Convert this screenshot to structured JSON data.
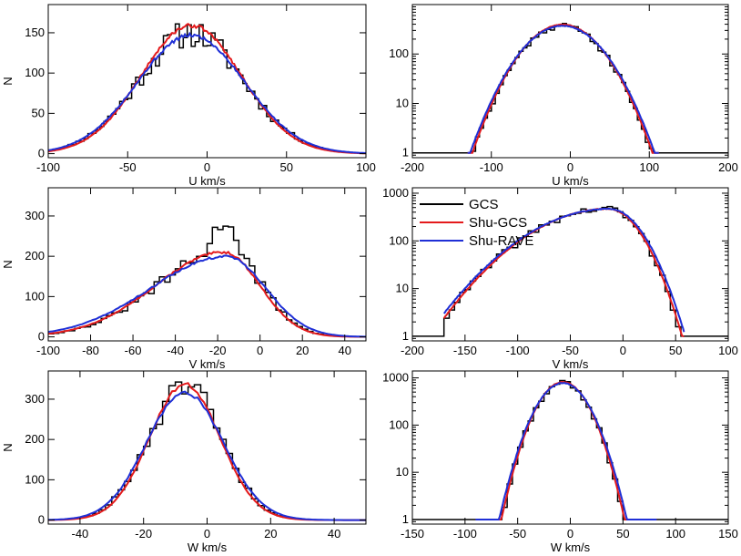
{
  "figure": {
    "legend": {
      "placement": "top-left of middle-right panel",
      "entries": [
        {
          "name": "GCS",
          "color": "#000000"
        },
        {
          "name": "Shu-GCS",
          "color": "#e41a1c"
        },
        {
          "name": "Shu-RAVE",
          "color": "#1f2fd6"
        }
      ]
    }
  },
  "chart_data": [
    {
      "id": "U-lin",
      "type": "line",
      "xlabel": "U km/s",
      "ylabel": "N",
      "xscale": "linear",
      "yscale": "linear",
      "xlim": [
        -100,
        100
      ],
      "ylim": [
        -5,
        185
      ],
      "xticks": [
        -100,
        -50,
        0,
        50,
        100
      ],
      "yticks": [
        0,
        50,
        100,
        150
      ],
      "dist": {
        "mu": -10,
        "sigma": 33,
        "amp": 150,
        "lo": -130,
        "hi": 110
      },
      "series": [
        {
          "name": "GCS",
          "color": "#000000",
          "style": "step",
          "noise": 0.12,
          "seed": 11,
          "dx": 2.5
        },
        {
          "name": "Shu-GCS",
          "color": "#e41a1c",
          "style": "line",
          "ampScale": 1.06,
          "muShift": 0,
          "sigmaScale": 0.96,
          "seed": 3
        },
        {
          "name": "Shu-RAVE",
          "color": "#1f2fd6",
          "style": "line",
          "ampScale": 0.98,
          "muShift": 0,
          "sigmaScale": 1.02,
          "seed": 5
        }
      ]
    },
    {
      "id": "U-log",
      "type": "line",
      "xlabel": "U km/s",
      "ylabel": "",
      "xscale": "linear",
      "yscale": "log",
      "xlim": [
        -200,
        200
      ],
      "ylim": [
        0.8,
        1000
      ],
      "xticks": [
        -200,
        -100,
        0,
        100,
        200
      ],
      "yticks": [
        1,
        10,
        100
      ],
      "dist": {
        "mu": -10,
        "sigma": 33,
        "amp": 380,
        "lo": -130,
        "hi": 112
      },
      "series": [
        {
          "name": "GCS",
          "color": "#000000",
          "style": "step",
          "noise": 0.14,
          "seed": 21,
          "dx": 5
        },
        {
          "name": "Shu-GCS",
          "color": "#e41a1c",
          "style": "line",
          "ampScale": 1.03,
          "muShift": 0,
          "sigmaScale": 1.0,
          "seed": 7
        },
        {
          "name": "Shu-RAVE",
          "color": "#1f2fd6",
          "style": "line",
          "ampScale": 0.98,
          "muShift": 0,
          "sigmaScale": 1.03,
          "seed": 9
        }
      ]
    },
    {
      "id": "V-lin",
      "type": "line",
      "xlabel": "V km/s",
      "ylabel": "N",
      "xscale": "linear",
      "yscale": "linear",
      "xlim": [
        -100,
        50
      ],
      "ylim": [
        -10,
        370
      ],
      "xticks": [
        -100,
        -80,
        -60,
        -40,
        -20,
        0,
        20,
        40
      ],
      "yticks": [
        0,
        100,
        200,
        300
      ],
      "dist": {
        "mu": -16,
        "sigma": 17,
        "amp": 210,
        "skew": 1.9,
        "lo": -100,
        "hi": 50
      },
      "series": [
        {
          "name": "GCS",
          "color": "#000000",
          "style": "step",
          "noise": 0.1,
          "seed": 31,
          "dx": 2.5,
          "peakBoost": 1.4
        },
        {
          "name": "Shu-GCS",
          "color": "#e41a1c",
          "style": "line",
          "ampScale": 1.0,
          "muShift": -1,
          "sigmaScale": 1.0,
          "seed": 13
        },
        {
          "name": "Shu-RAVE",
          "color": "#1f2fd6",
          "style": "line",
          "ampScale": 0.95,
          "muShift": 0,
          "sigmaScale": 1.1,
          "seed": 15
        }
      ]
    },
    {
      "id": "V-log",
      "type": "line",
      "xlabel": "V km/s",
      "ylabel": "",
      "xscale": "linear",
      "yscale": "log",
      "xlim": [
        -200,
        100
      ],
      "ylim": [
        0.8,
        1300
      ],
      "xticks": [
        -200,
        -150,
        -100,
        -50,
        0,
        50,
        100
      ],
      "yticks": [
        1,
        10,
        100,
        1000
      ],
      "dist": {
        "mu": -14,
        "sigma": 20,
        "amp": 470,
        "skew": 2.4,
        "lo": -170,
        "hi": 58
      },
      "series": [
        {
          "name": "GCS",
          "color": "#000000",
          "style": "step",
          "noise": 0.16,
          "seed": 41,
          "dx": 5
        },
        {
          "name": "Shu-GCS",
          "color": "#e41a1c",
          "style": "line",
          "ampScale": 1.0,
          "muShift": 0,
          "sigmaScale": 1.0,
          "seed": 17
        },
        {
          "name": "Shu-RAVE",
          "color": "#1f2fd6",
          "style": "line",
          "ampScale": 1.0,
          "muShift": 1,
          "sigmaScale": 1.03,
          "seed": 19
        }
      ]
    },
    {
      "id": "W-lin",
      "type": "line",
      "xlabel": "W km/s",
      "ylabel": "N",
      "xscale": "linear",
      "yscale": "linear",
      "xlim": [
        -50,
        50
      ],
      "ylim": [
        -10,
        370
      ],
      "xticks": [
        -40,
        -20,
        0,
        20,
        40
      ],
      "yticks": [
        0,
        100,
        200,
        300
      ],
      "dist": {
        "mu": -7,
        "sigma": 11.5,
        "amp": 330,
        "lo": -50,
        "hi": 50
      },
      "series": [
        {
          "name": "GCS",
          "color": "#000000",
          "style": "step",
          "noise": 0.1,
          "seed": 51,
          "dx": 2
        },
        {
          "name": "Shu-GCS",
          "color": "#e41a1c",
          "style": "line",
          "ampScale": 1.02,
          "muShift": 0,
          "sigmaScale": 0.97,
          "seed": 23
        },
        {
          "name": "Shu-RAVE",
          "color": "#1f2fd6",
          "style": "line",
          "ampScale": 0.96,
          "muShift": 0,
          "sigmaScale": 1.05,
          "seed": 25
        }
      ]
    },
    {
      "id": "W-log",
      "type": "line",
      "xlabel": "W km/s",
      "ylabel": "",
      "xscale": "linear",
      "yscale": "log",
      "xlim": [
        -150,
        150
      ],
      "ylim": [
        0.8,
        1400
      ],
      "xticks": [
        -150,
        -100,
        -50,
        0,
        50,
        100,
        150
      ],
      "yticks": [
        1,
        10,
        100,
        1000
      ],
      "dist": {
        "mu": -7,
        "sigma": 16,
        "amp": 800,
        "lo": -90,
        "hi": 82
      },
      "series": [
        {
          "name": "GCS",
          "color": "#000000",
          "style": "step",
          "noise": 0.14,
          "seed": 61,
          "dx": 5
        },
        {
          "name": "Shu-GCS",
          "color": "#e41a1c",
          "style": "line",
          "ampScale": 1.02,
          "muShift": 0,
          "sigmaScale": 1.0,
          "seed": 27
        },
        {
          "name": "Shu-RAVE",
          "color": "#1f2fd6",
          "style": "line",
          "ampScale": 0.97,
          "muShift": 0,
          "sigmaScale": 1.04,
          "seed": 29
        }
      ]
    }
  ]
}
